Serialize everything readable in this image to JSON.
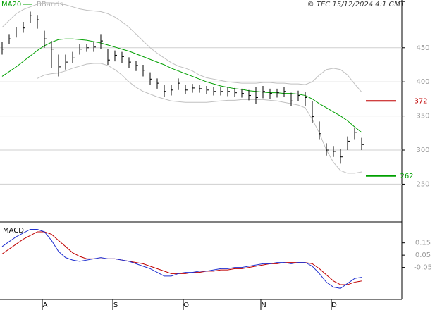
{
  "chart_data": [
    {
      "type": "ohlc",
      "source": "© TEC 15/12/2024 4:1 GMT",
      "categories": [
        null,
        null,
        null,
        null,
        null,
        null,
        "A",
        null,
        null,
        null,
        null,
        null,
        null,
        null,
        null,
        null,
        "S",
        null,
        null,
        null,
        null,
        null,
        null,
        null,
        null,
        null,
        "O",
        null,
        null,
        null,
        null,
        null,
        null,
        null,
        null,
        null,
        null,
        "N",
        null,
        null,
        null,
        null,
        null,
        null,
        null,
        null,
        null,
        "D",
        null,
        null,
        null,
        null
      ],
      "close": [
        448,
        463,
        473,
        479,
        497,
        491,
        463,
        448,
        422,
        429,
        435,
        448,
        450,
        451,
        460,
        432,
        439,
        437,
        429,
        424,
        417,
        404,
        398,
        386,
        388,
        398,
        388,
        391,
        390,
        388,
        386,
        386,
        386,
        384,
        383,
        380,
        377,
        386,
        383,
        384,
        386,
        372,
        380,
        377,
        349,
        324,
        300,
        298,
        290,
        313,
        326,
        308
      ],
      "high": [
        458,
        470,
        480,
        488,
        503,
        498,
        475,
        460,
        440,
        440,
        444,
        455,
        456,
        458,
        470,
        448,
        446,
        444,
        436,
        431,
        425,
        414,
        405,
        395,
        396,
        405,
        396,
        397,
        396,
        394,
        392,
        392,
        392,
        391,
        390,
        388,
        392,
        394,
        390,
        390,
        392,
        384,
        387,
        385,
        372,
        342,
        310,
        306,
        302,
        320,
        332,
        318
      ],
      "low": [
        440,
        455,
        465,
        472,
        486,
        478,
        450,
        420,
        408,
        418,
        428,
        440,
        444,
        444,
        448,
        425,
        430,
        428,
        420,
        416,
        408,
        395,
        390,
        378,
        380,
        388,
        382,
        384,
        384,
        382,
        380,
        380,
        379,
        378,
        377,
        373,
        368,
        376,
        375,
        377,
        378,
        365,
        372,
        365,
        340,
        316,
        292,
        290,
        280,
        300,
        316,
        300
      ],
      "color": "#000000",
      "overlays": [
        {
          "name": "MA20",
          "color": "#00a000",
          "values": [
            408,
            415,
            422,
            430,
            438,
            446,
            453,
            458,
            462,
            463,
            463,
            462,
            461,
            459,
            457,
            454,
            451,
            448,
            445,
            441,
            437,
            433,
            429,
            425,
            420,
            416,
            412,
            408,
            404,
            400,
            397,
            394,
            392,
            390,
            389,
            387,
            386,
            385,
            384,
            384,
            383,
            383,
            382,
            380,
            375,
            368,
            362,
            356,
            350,
            343,
            334,
            326
          ]
        },
        {
          "name": "BBands",
          "color": "#c0c0c0",
          "upper": [
            480,
            490,
            500,
            506,
            510,
            514,
            516,
            516,
            515,
            513,
            510,
            507,
            505,
            504,
            503,
            500,
            495,
            488,
            480,
            470,
            460,
            450,
            442,
            435,
            428,
            423,
            420,
            416,
            410,
            406,
            404,
            402,
            400,
            399,
            398,
            398,
            398,
            399,
            399,
            398,
            398,
            397,
            397,
            396,
            400,
            410,
            418,
            420,
            418,
            410,
            397,
            385
          ],
          "lower": [
            null,
            null,
            null,
            null,
            null,
            405,
            410,
            412,
            413,
            416,
            420,
            423,
            426,
            427,
            427,
            424,
            418,
            410,
            400,
            392,
            386,
            382,
            378,
            375,
            372,
            371,
            370,
            370,
            370,
            370,
            371,
            372,
            373,
            373,
            374,
            374,
            374,
            374,
            373,
            372,
            370,
            368,
            366,
            362,
            345,
            325,
            300,
            282,
            270,
            266,
            266,
            268
          ]
        }
      ],
      "levels": [
        {
          "value": 372,
          "color": "#c00000"
        },
        {
          "value": 262,
          "color": "#00a000"
        }
      ],
      "ylim": [
        205,
        520
      ],
      "yticks": [
        250,
        300,
        350,
        400,
        450
      ],
      "grid": true
    },
    {
      "type": "line",
      "title": "MACD",
      "series": [
        {
          "color": "#c00000",
          "values": [
            0.06,
            0.1,
            0.14,
            0.18,
            0.21,
            0.24,
            0.24,
            0.22,
            0.17,
            0.12,
            0.07,
            0.04,
            0.02,
            0.02,
            0.02,
            0.02,
            0.02,
            0.01,
            0.0,
            -0.01,
            -0.02,
            -0.04,
            -0.06,
            -0.08,
            -0.1,
            -0.1,
            -0.1,
            -0.09,
            -0.09,
            -0.08,
            -0.08,
            -0.07,
            -0.07,
            -0.06,
            -0.06,
            -0.05,
            -0.04,
            -0.03,
            -0.02,
            -0.02,
            -0.01,
            -0.01,
            -0.01,
            -0.01,
            -0.02,
            -0.06,
            -0.11,
            -0.16,
            -0.19,
            -0.19,
            -0.17,
            -0.16
          ]
        },
        {
          "color": "#2030d0",
          "values": [
            0.12,
            0.16,
            0.2,
            0.23,
            0.26,
            0.26,
            0.24,
            0.17,
            0.08,
            0.03,
            0.01,
            0.0,
            0.01,
            0.02,
            0.03,
            0.02,
            0.02,
            0.01,
            0.0,
            -0.02,
            -0.04,
            -0.06,
            -0.09,
            -0.12,
            -0.12,
            -0.1,
            -0.09,
            -0.09,
            -0.08,
            -0.08,
            -0.07,
            -0.06,
            -0.06,
            -0.05,
            -0.05,
            -0.04,
            -0.03,
            -0.02,
            -0.02,
            -0.01,
            -0.01,
            -0.02,
            -0.01,
            -0.01,
            -0.04,
            -0.1,
            -0.17,
            -0.21,
            -0.22,
            -0.18,
            -0.14,
            -0.13
          ]
        }
      ],
      "ylim": [
        -0.31,
        0.32
      ],
      "yticks": [
        0.15,
        0.05,
        -0.05
      ]
    }
  ]
}
